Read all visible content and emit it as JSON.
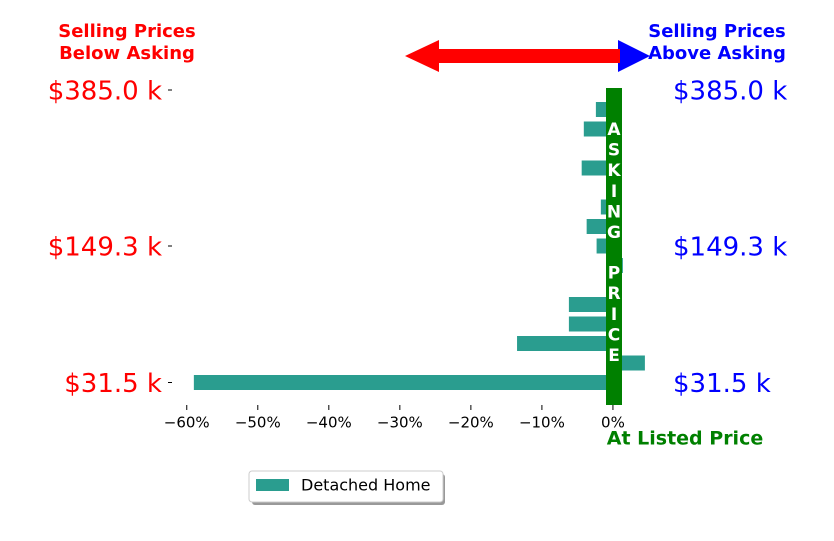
{
  "chart_data": {
    "type": "barh",
    "left_heading": [
      "Selling Prices",
      "Below Asking"
    ],
    "right_heading": [
      "Selling Prices",
      "Above Asking"
    ],
    "asking_label": [
      "ASKING",
      "PRICE"
    ],
    "zero_label": "At Listed Price",
    "categories": [
      "$385.0 k",
      null,
      null,
      null,
      null,
      null,
      null,
      null,
      "$149.3 k",
      null,
      null,
      null,
      null,
      null,
      null,
      "$31.5 k"
    ],
    "series": [
      {
        "name": "Detached Home",
        "color": "#2a9d8f",
        "values": [
          0,
          -2.4,
          -4.1,
          0,
          -4.4,
          0,
          -1.7,
          -3.7,
          -2.3,
          1.4,
          0,
          -6.2,
          -6.2,
          -13.5,
          4.5,
          -59
        ]
      }
    ],
    "xlim": [
      -62.5,
      5.5
    ],
    "xticks": [
      {
        "value": -60,
        "label": "−60%"
      },
      {
        "value": -50,
        "label": "−50%"
      },
      {
        "value": -40,
        "label": "−40%"
      },
      {
        "value": -30,
        "label": "−30%"
      },
      {
        "value": -20,
        "label": "−20%"
      },
      {
        "value": -10,
        "label": "−10%"
      },
      {
        "value": 0,
        "label": "0%"
      }
    ],
    "left_label_color": "#ff0000",
    "right_label_color": "#0000ff",
    "asking_color": "#008000"
  }
}
